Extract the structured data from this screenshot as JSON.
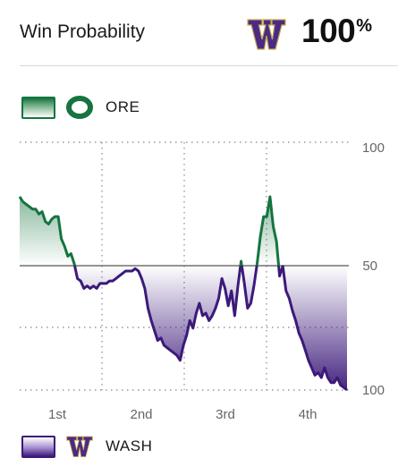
{
  "header": {
    "title": "Win Probability",
    "leader_logo": "washington-w-logo",
    "leader_pct": "100",
    "pct_symbol": "%"
  },
  "legend": {
    "top": {
      "abbr": "ORE",
      "logo": "oregon-o-logo",
      "color": "#15743f"
    },
    "bottom": {
      "abbr": "WASH",
      "logo": "washington-w-logo",
      "color": "#3c1a7a"
    }
  },
  "chart_data": {
    "type": "area",
    "y_labels": [
      "100",
      "50",
      "100"
    ],
    "quarters": [
      "1st",
      "2nd",
      "3rd",
      "4th"
    ],
    "ylim": [
      0,
      100
    ],
    "grid": true,
    "colors": {
      "ore": "#15743f",
      "wash": "#3c1a7a"
    },
    "series": [
      {
        "name": "ORE",
        "values": [
          78,
          76,
          75,
          74,
          73,
          73,
          71,
          72,
          68,
          67,
          69,
          70,
          70,
          61,
          58,
          54,
          55,
          51,
          45,
          44,
          41,
          42,
          41,
          42,
          41,
          43,
          43,
          43,
          44,
          44,
          45,
          46,
          47,
          48,
          48,
          48,
          49,
          48,
          45,
          41,
          33,
          28,
          24,
          20,
          21,
          18,
          17,
          16,
          15,
          14,
          12,
          18,
          22,
          28,
          25,
          31,
          35,
          30,
          31,
          28,
          30,
          33,
          37,
          45,
          41,
          34,
          40,
          30,
          42,
          52,
          43,
          33,
          35,
          42,
          51,
          62,
          70,
          70,
          78,
          66,
          60,
          46,
          50,
          40,
          37,
          32,
          28,
          23,
          20,
          16,
          12,
          9,
          6,
          7,
          5,
          9,
          5,
          3,
          3,
          5,
          2,
          1,
          0
        ]
      }
    ]
  }
}
